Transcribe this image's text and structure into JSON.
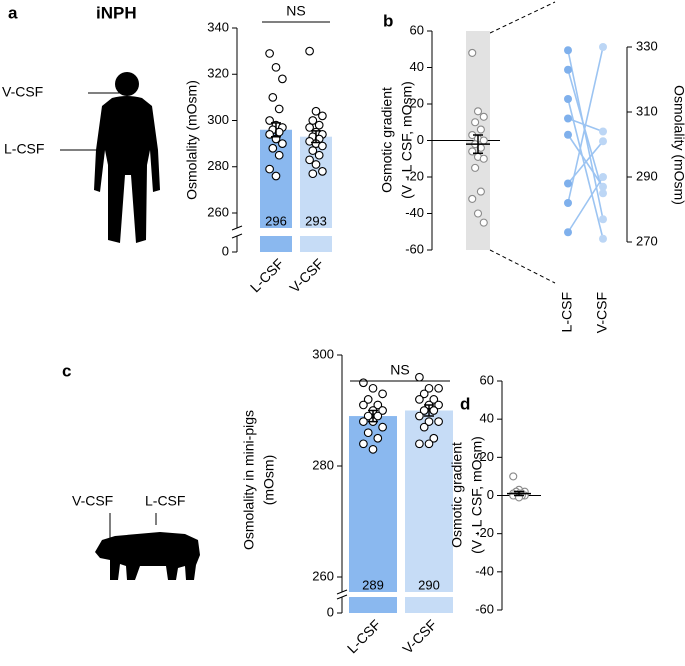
{
  "figure": {
    "human_title": "iNPH",
    "human_labels": [
      "V-CSF",
      "L-CSF"
    ],
    "pig_labels": [
      "V-CSF",
      "L-CSF"
    ]
  },
  "chart_data": [
    {
      "type": "bar",
      "panel": "a",
      "ylabel": [
        "Osmolality (mOsm)"
      ],
      "categories": [
        "L-CSF",
        "V-CSF"
      ],
      "values": [
        296,
        293
      ],
      "errors": [
        3,
        2.5
      ],
      "colors": [
        "#8ab8ef",
        "#c6dcf6"
      ],
      "points": [
        [
          329,
          323,
          318,
          310,
          305,
          300,
          298,
          297,
          296,
          295,
          294,
          292,
          290,
          288,
          285,
          279,
          276
        ],
        [
          330,
          304,
          302,
          300,
          298,
          297,
          295,
          294,
          293,
          292,
          291,
          290,
          289,
          287,
          285,
          283,
          281,
          278,
          277
        ]
      ],
      "ylim": [
        0,
        340
      ],
      "yticks": [
        0,
        260,
        280,
        300,
        320,
        340
      ],
      "broken_axis": true,
      "annotation": "NS"
    },
    {
      "type": "strip",
      "panel": "b",
      "ylabel": [
        "Osmotic gradient",
        "(V - L CSF, mOsm)"
      ],
      "values": [
        48,
        16,
        13,
        10,
        6,
        3,
        1,
        0,
        -2,
        -4,
        -6,
        -9,
        -10,
        -15,
        -28,
        -32,
        -40,
        -45
      ],
      "mean": -2,
      "error": 5,
      "ylim": [
        -60,
        60
      ],
      "yticks": [
        -60,
        -40,
        -20,
        0,
        20,
        40,
        60
      ],
      "band": true
    },
    {
      "type": "paired",
      "categories": [
        "L-CSF",
        "V-CSF"
      ],
      "ylabel": [
        "Osmolality (mOsm)"
      ],
      "pairs": [
        [
          329,
          277
        ],
        [
          323,
          285
        ],
        [
          314,
          271
        ],
        [
          308,
          304
        ],
        [
          303,
          287
        ],
        [
          288,
          301
        ],
        [
          282,
          330
        ],
        [
          273,
          290
        ]
      ],
      "colors": [
        "#7fb0ec",
        "#bcd6f5"
      ],
      "line_color": "#9cc4f2",
      "ylim": [
        270,
        330
      ],
      "yticks": [
        270,
        290,
        310,
        330
      ],
      "axis_side": "right"
    },
    {
      "type": "bar",
      "panel": "c",
      "ylabel": [
        "Osmolality in mini-pigs",
        "(mOsm)"
      ],
      "categories": [
        "L-CSF",
        "V-CSF"
      ],
      "values": [
        289,
        290
      ],
      "errors": [
        1,
        1
      ],
      "colors": [
        "#8ab8ef",
        "#c6dcf6"
      ],
      "points": [
        [
          295,
          294,
          293,
          292,
          291,
          291,
          290,
          290,
          289,
          289,
          288,
          288,
          287,
          286,
          285,
          284,
          283
        ],
        [
          296,
          294,
          294,
          293,
          292,
          292,
          291,
          291,
          290,
          290,
          289,
          288,
          288,
          287,
          285,
          284,
          284
        ]
      ],
      "ylim": [
        0,
        300
      ],
      "yticks": [
        0,
        260,
        280,
        300
      ],
      "broken_axis": true,
      "annotation": "NS"
    },
    {
      "type": "strip",
      "panel": "d",
      "ylabel": [
        "Osmotic gradient",
        "(V - L CSF, mOsm)"
      ],
      "values": [
        10,
        3,
        2,
        2,
        1,
        1,
        1,
        0,
        0,
        0,
        0,
        -1
      ],
      "mean": 1,
      "error": 1,
      "ylim": [
        -60,
        60
      ],
      "yticks": [
        -60,
        -40,
        -20,
        0,
        20,
        40,
        60
      ],
      "band": false
    }
  ]
}
